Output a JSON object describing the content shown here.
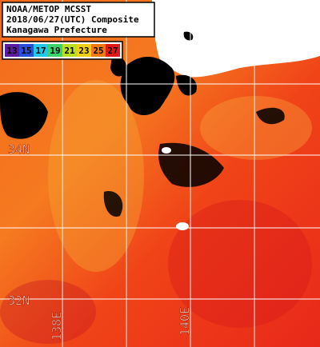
{
  "header": {
    "lines": [
      "NOAA/METOP MCSST",
      "2018/06/27(UTC) Composite",
      "Kanagawa Prefecture"
    ]
  },
  "colorbar": {
    "labels": [
      "13",
      "15",
      "17",
      "19",
      "21",
      "23",
      "25",
      "27"
    ],
    "colors": [
      "#5a1e9c",
      "#2b4fd8",
      "#22c8e8",
      "#3cd46a",
      "#b8e020",
      "#f0d010",
      "#f07a10",
      "#e01818"
    ]
  },
  "grid_labels": {
    "latitudes": [
      "34N",
      "32N"
    ],
    "longitudes": [
      "138E",
      "140E"
    ]
  }
}
